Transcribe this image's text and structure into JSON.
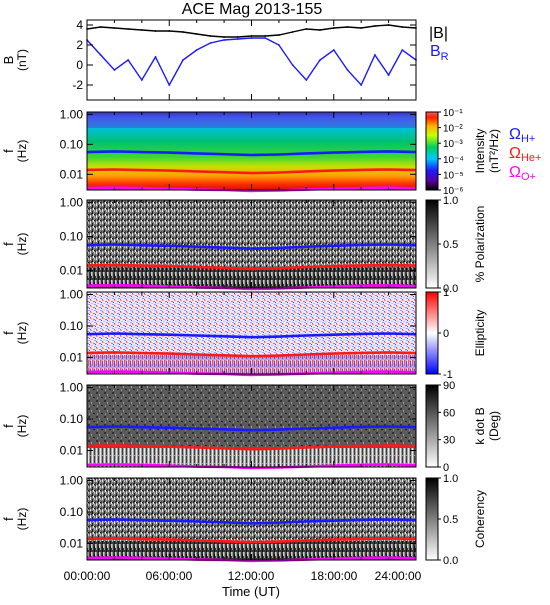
{
  "title": "ACE Mag 2013-155",
  "xaxis": {
    "label": "Time (UT)",
    "tick_labels": [
      "00:00:00",
      "06:00:00",
      "12:00:00",
      "18:00:00",
      "24:00:00"
    ]
  },
  "legend_b": {
    "total": "|B|",
    "radial": "B",
    "radial_sub": "R"
  },
  "legend_freq": [
    {
      "main": "Ω",
      "sub": "H+",
      "color": "#1a1aff"
    },
    {
      "main": "Ω",
      "sub": "He+",
      "color": "#ff1a1a"
    },
    {
      "main": "Ω",
      "sub": "O+",
      "color": "#ff00ff"
    }
  ],
  "panels": [
    {
      "ylabel": "B",
      "yunit": "(nT)",
      "yticks": [
        "4",
        "2",
        "0",
        "-2"
      ]
    },
    {
      "ylabel": "f",
      "yunit": "(Hz)",
      "yticks": [
        "1.00",
        "0.10",
        "0.01"
      ],
      "colorbar": {
        "label": "Intensity",
        "unit": "(nT²/Hz)",
        "ticks": [
          "10⁻¹",
          "10⁻²",
          "10⁻³",
          "10⁻⁴",
          "10⁻⁵",
          "10⁻⁶"
        ]
      }
    },
    {
      "ylabel": "f",
      "yunit": "(Hz)",
      "yticks": [
        "1.00",
        "0.10",
        "0.01"
      ],
      "colorbar": {
        "label": "% Polarization",
        "unit": "",
        "ticks": [
          "1.0",
          "0.5",
          "0.0"
        ]
      }
    },
    {
      "ylabel": "f",
      "yunit": "(Hz)",
      "yticks": [
        "1.00",
        "0.10",
        "0.01"
      ],
      "colorbar": {
        "label": "Ellipticity",
        "unit": "",
        "ticks": [
          "1",
          "0",
          "-1"
        ]
      }
    },
    {
      "ylabel": "f",
      "yunit": "(Hz)",
      "yticks": [
        "1.00",
        "0.10",
        "0.01"
      ],
      "colorbar": {
        "label": "k dot B",
        "unit": "(Deg)",
        "ticks": [
          "90",
          "60",
          "30",
          "0"
        ]
      }
    },
    {
      "ylabel": "f",
      "yunit": "(Hz)",
      "yticks": [
        "1.00",
        "0.10",
        "0.01"
      ],
      "colorbar": {
        "label": "Coherency",
        "unit": "",
        "ticks": [
          "1.0",
          "0.5",
          "0.0"
        ]
      }
    }
  ],
  "chart_data": {
    "type": "line",
    "x_unit": "hours UT",
    "xlim": [
      0,
      24
    ],
    "magnetic_field": {
      "ylim": [
        -3.5,
        4.5
      ],
      "series": [
        {
          "name": "|B|",
          "color": "#000000",
          "x": [
            0,
            1,
            2,
            3,
            4,
            5,
            6,
            7,
            8,
            9,
            10,
            11,
            12,
            13,
            14,
            15,
            16,
            17,
            18,
            19,
            20,
            21,
            22,
            23,
            24
          ],
          "y": [
            3.6,
            3.8,
            3.7,
            3.6,
            3.5,
            3.4,
            3.4,
            3.3,
            3.1,
            2.9,
            2.8,
            2.8,
            2.9,
            2.9,
            3.0,
            3.3,
            3.6,
            3.5,
            3.7,
            3.8,
            3.7,
            3.9,
            4.0,
            3.8,
            3.7
          ]
        },
        {
          "name": "B_R",
          "color": "#1a1aff",
          "x": [
            0,
            1,
            2,
            3,
            4,
            5,
            6,
            7,
            8,
            9,
            10,
            11,
            12,
            13,
            14,
            15,
            16,
            17,
            18,
            19,
            20,
            21,
            22,
            23,
            24
          ],
          "y": [
            2.5,
            1.0,
            -0.5,
            0.5,
            -1.5,
            0.8,
            -2.0,
            0.5,
            1.5,
            2.2,
            2.5,
            2.6,
            2.7,
            2.7,
            2.0,
            0.0,
            -1.5,
            0.5,
            1.5,
            -0.5,
            -2.0,
            1.0,
            -1.0,
            1.5,
            0.5
          ]
        }
      ]
    },
    "ion_gyrofrequencies": {
      "ylim_hz": [
        0.003,
        1.2
      ],
      "yscale": "log",
      "series": [
        {
          "name": "H+",
          "color": "#1a1aff",
          "x": [
            0,
            2,
            4,
            6,
            8,
            10,
            12,
            14,
            16,
            18,
            20,
            22,
            24
          ],
          "y": [
            0.055,
            0.058,
            0.055,
            0.053,
            0.05,
            0.047,
            0.044,
            0.046,
            0.05,
            0.053,
            0.056,
            0.058,
            0.055
          ]
        },
        {
          "name": "He+",
          "color": "#ff1a1a",
          "x": [
            0,
            2,
            4,
            6,
            8,
            10,
            12,
            14,
            16,
            18,
            20,
            22,
            24
          ],
          "y": [
            0.014,
            0.0145,
            0.0138,
            0.0133,
            0.0125,
            0.0118,
            0.011,
            0.0115,
            0.0125,
            0.0133,
            0.014,
            0.0145,
            0.0138
          ]
        },
        {
          "name": "O+",
          "color": "#ff00ff",
          "x": [
            0,
            2,
            4,
            6,
            8,
            10,
            12,
            14,
            16,
            18,
            20,
            22,
            24
          ],
          "y": [
            0.0035,
            0.0036,
            0.0035,
            0.0033,
            0.0031,
            0.003,
            0.0028,
            0.0029,
            0.0031,
            0.0033,
            0.0035,
            0.0036,
            0.0034
          ]
        }
      ]
    }
  }
}
